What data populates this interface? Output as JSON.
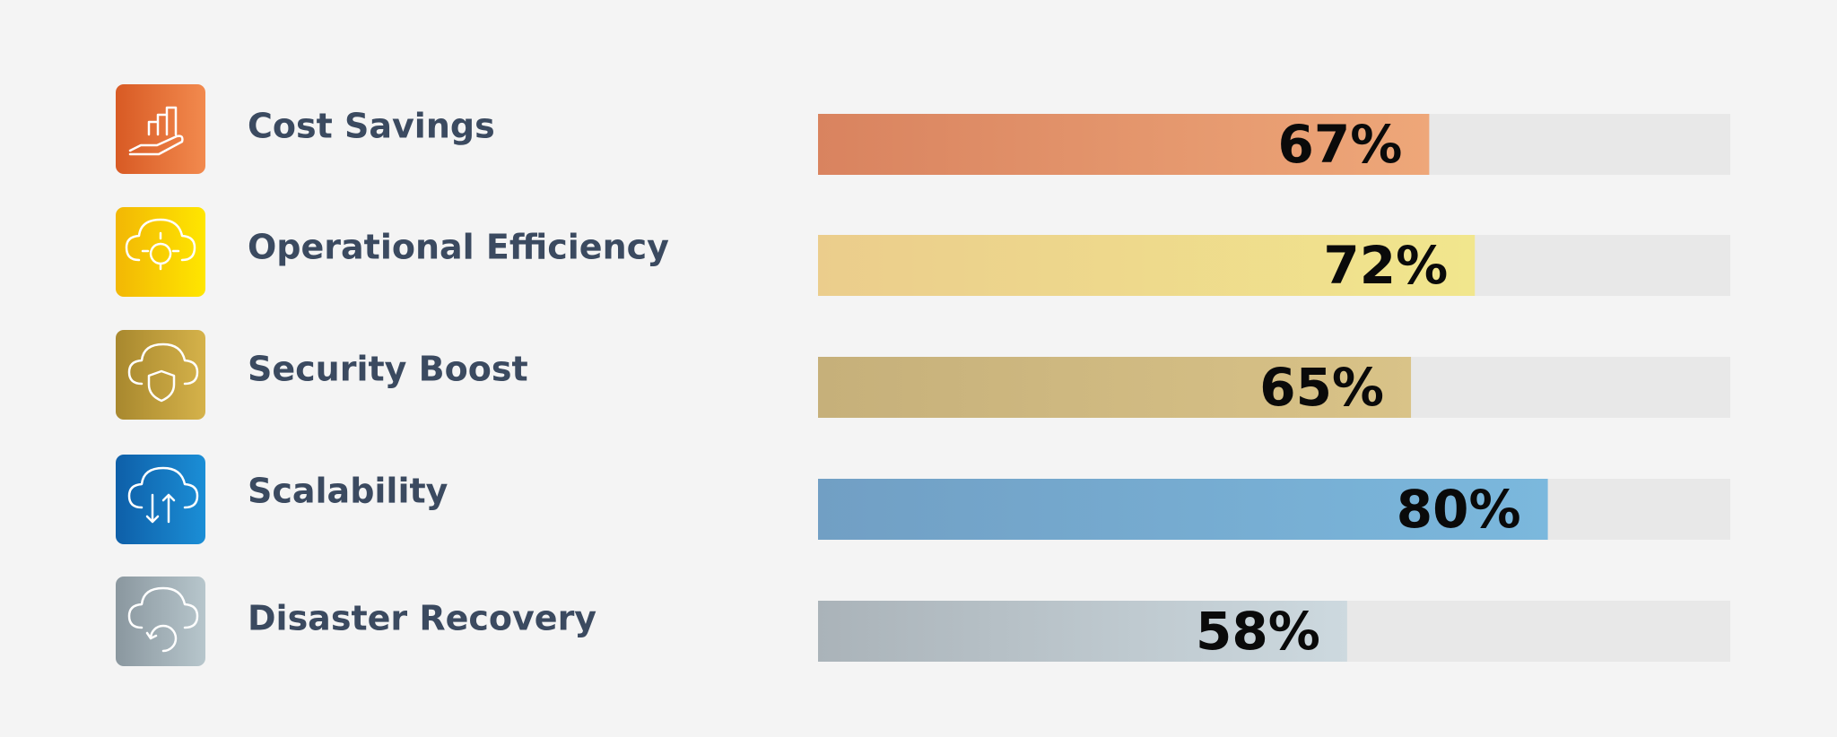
{
  "chart_data": {
    "type": "bar",
    "orientation": "horizontal",
    "categories": [
      "Cost Savings",
      "Operational Efficiency",
      "Security Boost",
      "Scalability",
      "Disaster Recovery"
    ],
    "values": [
      67,
      72,
      65,
      80,
      58
    ],
    "value_labels": [
      "67%",
      "72%",
      "65%",
      "80%",
      "58%"
    ],
    "gradients": [
      [
        "#d9835f",
        "#eea779"
      ],
      [
        "#ebcd8c",
        "#f1e68d"
      ],
      [
        "#c6b07a",
        "#d9c388"
      ],
      [
        "#719fc4",
        "#7bb8dd"
      ],
      [
        "#aab3b9",
        "#cdd9df"
      ]
    ],
    "xlim": [
      0,
      100
    ]
  }
}
